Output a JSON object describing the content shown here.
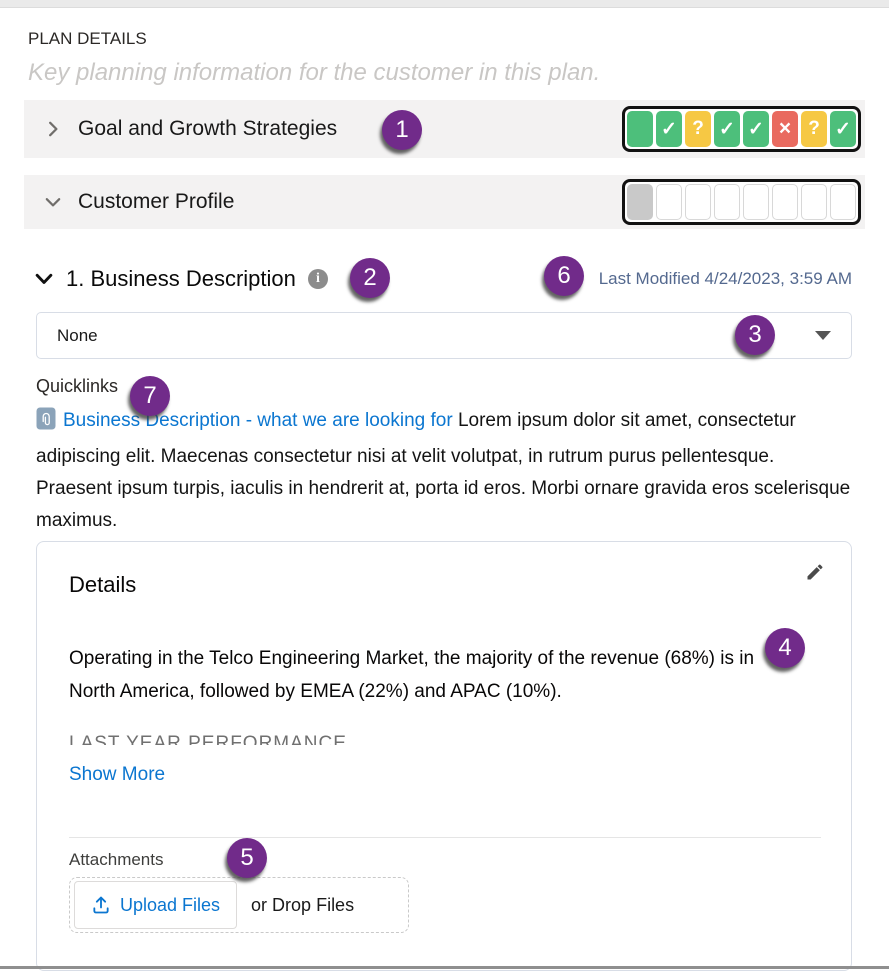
{
  "header": {
    "title": "PLAN DETAILS",
    "subtitle": "Key planning information for the customer in this plan."
  },
  "accordions": [
    {
      "label": "Goal and Growth Strategies",
      "state": "collapsed",
      "statuses": [
        "success:",
        "success:check",
        "warning:question",
        "success:check",
        "success:check",
        "error:cross",
        "warning:question",
        "success:check"
      ]
    },
    {
      "label": "Customer Profile",
      "state": "expanded",
      "statuses": [
        "gray:",
        "empty:",
        "empty:",
        "empty:",
        "empty:",
        "empty:",
        "empty:",
        "empty:"
      ]
    }
  ],
  "business_section": {
    "title": "1. Business Description",
    "info_icon_glyph": "i",
    "last_modified": "Last Modified 4/24/2023, 3:59 AM",
    "picklist_value": "None",
    "quicklinks_label": "Quicklinks",
    "quicklink_label": "Business Description - what we are looking for",
    "quicklink_description": "Lorem ipsum dolor sit amet, consectetur adipiscing elit. Maecenas consectetur nisi at velit volutpat, in rutrum purus pellentesque. Praesent ipsum turpis, iaculis in hendrerit at, porta id eros. Morbi ornare gravida eros scelerisque maximus."
  },
  "details_card": {
    "title": "Details",
    "body": "Operating in the Telco Engineering Market, the majority of the revenue (68%) is in North America, followed by EMEA (22%) and APAC (10%).",
    "truncated_line": "LAST YEAR PERFORMANCE",
    "show_more_label": "Show More",
    "attachments_label": "Attachments",
    "upload_files_label": "Upload Files",
    "drop_files_label": "or Drop Files"
  },
  "callouts": {
    "c1": "1",
    "c2": "2",
    "c3": "3",
    "c4": "4",
    "c5": "5",
    "c6": "6",
    "c7": "7"
  },
  "icons": {
    "check": "✓",
    "question": "?",
    "cross": "×"
  },
  "colors": {
    "accent_purple": "#712b8a",
    "success_green": "#4dbf7b",
    "warning_yellow": "#f6c844",
    "error_red": "#e96a5f",
    "link_blue": "#0b76d0",
    "modified_blue_gray": "#54698f",
    "row_background": "#f3f2f2"
  }
}
